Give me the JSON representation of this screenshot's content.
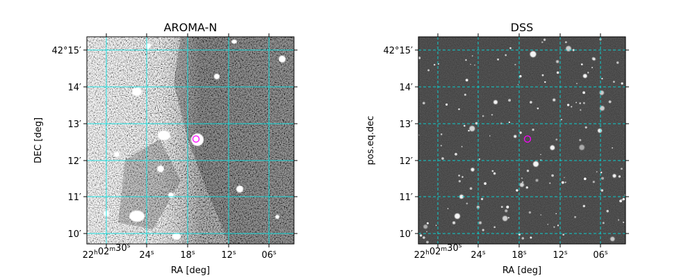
{
  "panels": [
    {
      "title": "AROMA-N",
      "xlabel": "RA [deg]",
      "ylabel": "DEC [deg]",
      "image_style": "noisy-grayscale",
      "grid_color": "#00e5e5",
      "grid_style": "solid",
      "marker_color": "#ff00ff",
      "x_ticks": [
        {
          "h": "22",
          "m": "02",
          "s": "30"
        },
        {
          "s": "24"
        },
        {
          "s": "18"
        },
        {
          "s": "12"
        },
        {
          "s": "06"
        }
      ],
      "y_ticks": [
        {
          "d": "42",
          "m": "15"
        },
        {
          "m": "14"
        },
        {
          "m": "13"
        },
        {
          "m": "12"
        },
        {
          "m": "11"
        },
        {
          "m": "10"
        }
      ]
    },
    {
      "title": "DSS",
      "xlabel": "RA [deg]",
      "ylabel": "pos.eq.dec",
      "image_style": "star-field",
      "grid_color": "#00e5e5",
      "grid_style": "dashed",
      "marker_color": "#ff00ff",
      "x_ticks": [
        {
          "h": "22",
          "m": "02",
          "s": "30"
        },
        {
          "s": "24"
        },
        {
          "s": "18"
        },
        {
          "s": "12"
        },
        {
          "s": "06"
        }
      ],
      "y_ticks": [
        {
          "d": "42",
          "m": "15"
        },
        {
          "m": "14"
        },
        {
          "m": "13"
        },
        {
          "m": "12"
        },
        {
          "m": "11"
        },
        {
          "m": "10"
        }
      ]
    }
  ]
}
